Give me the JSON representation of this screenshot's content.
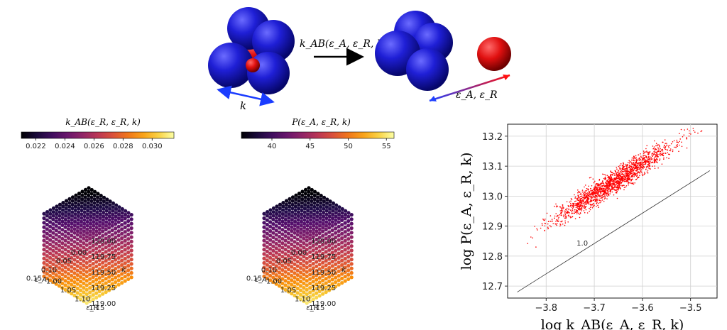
{
  "figure": {
    "top": {
      "rate_label": "k_AB(ε_A, ε_R, k)",
      "k_label": "k",
      "eps_label": "ε_A, ε_R",
      "colors": {
        "sphere_blue": "#1f1fd6",
        "sphere_red": "#e01010",
        "arrow_blue": "#1a3cff"
      }
    }
  },
  "chart_data": [
    {
      "type": "scatter",
      "subtype": "3d-cube",
      "colorbar_title": "k_AB(ε_R, ε_R, k)",
      "colorbar_ticks": [
        "0.022",
        "0.024",
        "0.026",
        "0.028",
        "0.030"
      ],
      "colorbar_range": [
        0.021,
        0.0315
      ],
      "colormap": "inferno",
      "axes": {
        "x": {
          "label": "ε_A",
          "ticks": [
            "0.15",
            "0.10",
            "0.05",
            "0.00"
          ]
        },
        "y": {
          "label": "ε_R",
          "ticks": [
            "1.00",
            "1.05",
            "1.10",
            "1.15"
          ]
        },
        "z": {
          "label": "k",
          "ticks": [
            "119.00",
            "119.25",
            "119.50",
            "119.75",
            "120.00"
          ]
        }
      },
      "grid": "15x15x15"
    },
    {
      "type": "scatter",
      "subtype": "3d-cube",
      "colorbar_title": "P(ε_A, ε_R, k)",
      "colorbar_ticks": [
        "40",
        "45",
        "50",
        "55"
      ],
      "colorbar_range": [
        36,
        56
      ],
      "colormap": "inferno",
      "axes": {
        "x": {
          "label": "ε_A",
          "ticks": [
            "0.15",
            "0.10",
            "0.05",
            "0.00"
          ]
        },
        "y": {
          "label": "ε_R",
          "ticks": [
            "1.00",
            "1.05",
            "1.10",
            "1.15"
          ]
        },
        "z": {
          "label": "k",
          "ticks": [
            "119.00",
            "119.25",
            "119.50",
            "119.75",
            "120.00"
          ]
        }
      },
      "grid": "15x15x15"
    },
    {
      "type": "scatter",
      "xlabel": "log k_AB(ε_A, ε_R, k)",
      "ylabel": "log P(ε_A, ε_R, k)",
      "xlim": [
        -3.88,
        -3.445
      ],
      "ylim": [
        12.66,
        13.24
      ],
      "xticks": [
        -3.8,
        -3.7,
        -3.6,
        -3.5
      ],
      "xtick_labels": [
        "−3.8",
        "−3.7",
        "−3.6",
        "−3.5"
      ],
      "yticks": [
        12.7,
        12.8,
        12.9,
        13.0,
        13.1,
        13.2
      ],
      "ytick_labels": [
        "12.7",
        "12.8",
        "12.9",
        "13.0",
        "13.1",
        "13.2"
      ],
      "grid": true,
      "point_color": "#ff0000",
      "trend": {
        "x_start": -3.86,
        "x_end": -3.46,
        "y_start": 12.685,
        "y_end": 13.09
      },
      "reference_line": {
        "x": [
          -3.86,
          -3.46
        ],
        "y": [
          12.68,
          13.085
        ],
        "label": "1.0",
        "label_x": -3.725,
        "label_y": 12.835
      },
      "series": [
        {
          "x_range": [
            -3.86,
            -3.46
          ],
          "slope": 1.0,
          "intercept_at_x0": 16.79,
          "spread": 0.028,
          "n_points": 1800
        }
      ]
    }
  ]
}
